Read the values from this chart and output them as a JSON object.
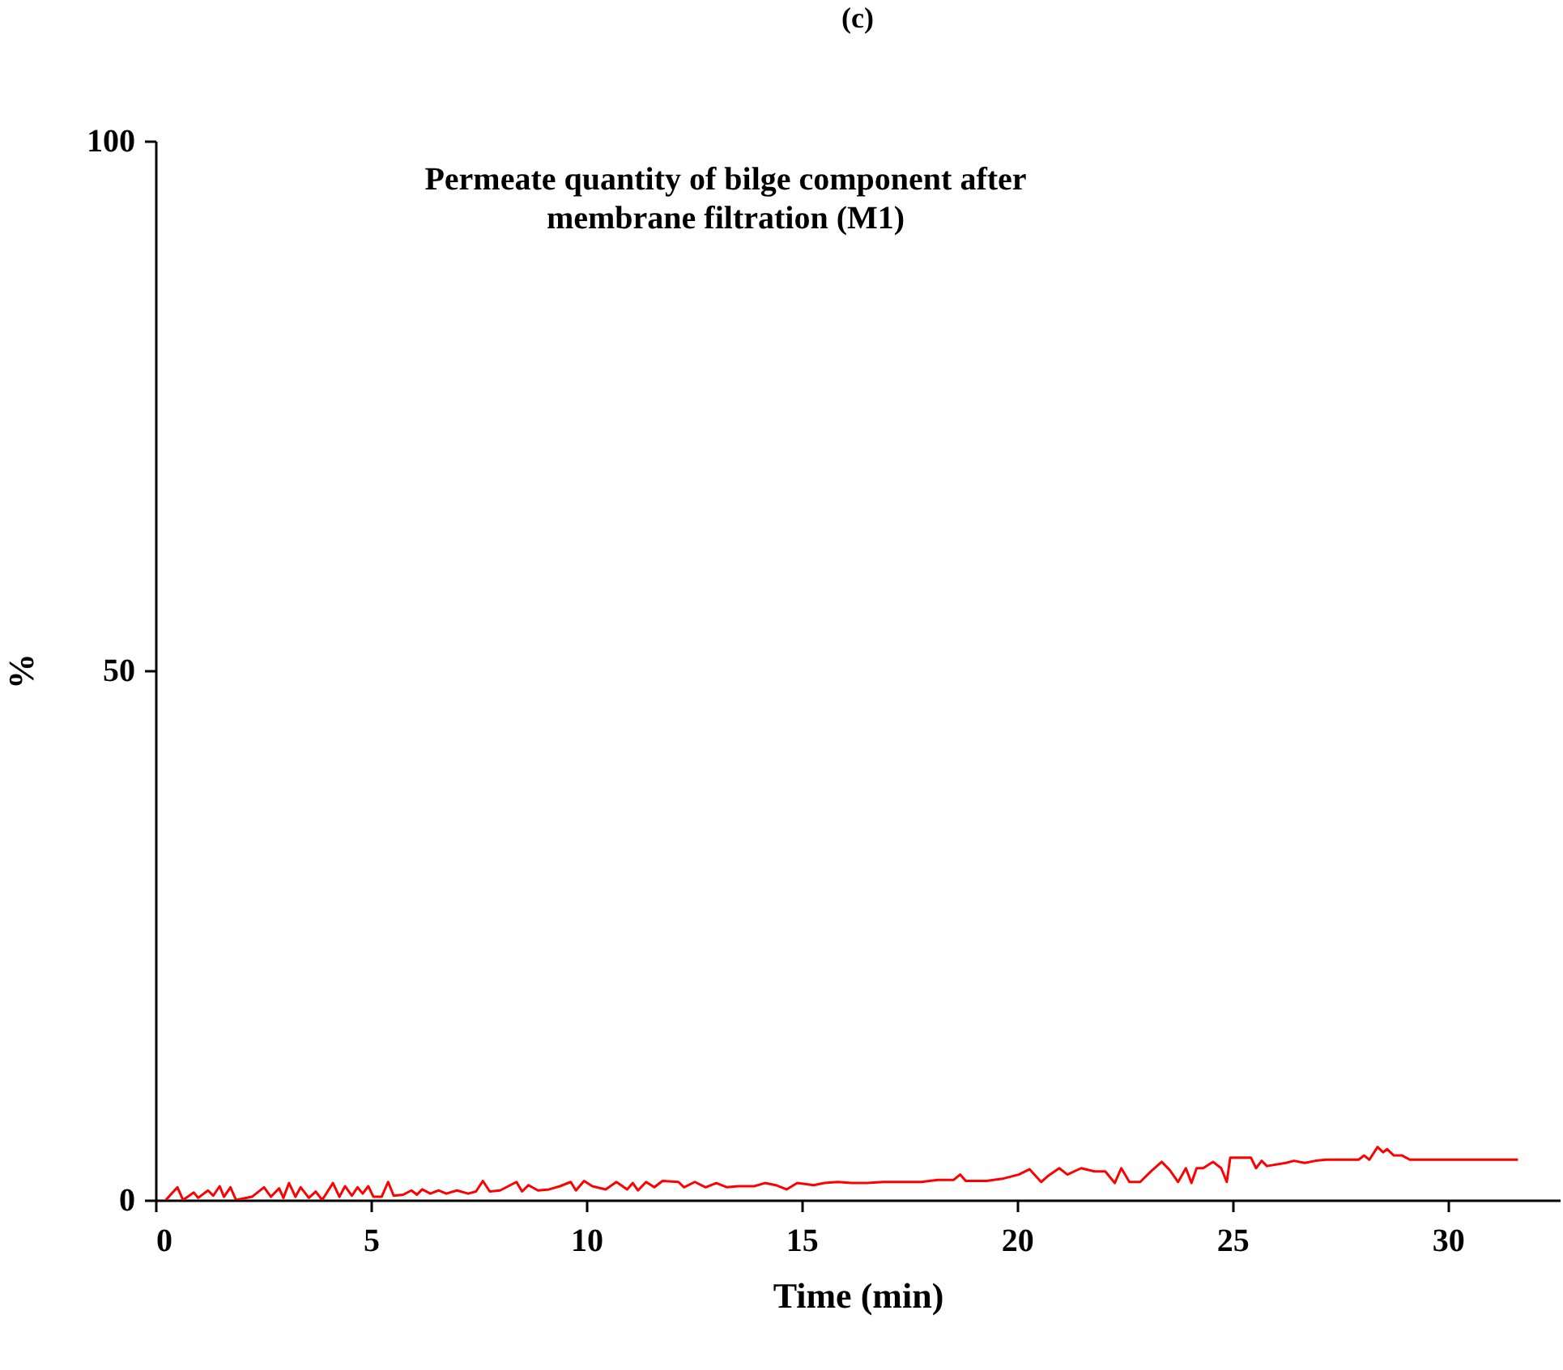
{
  "chart_data": {
    "type": "line",
    "title": "(c)",
    "subtitle": "Permeate quantity of bilge component after\nmembrane filtration (M1)",
    "xlabel": "Time (min)",
    "ylabel": "%",
    "xlim": [
      0,
      32.6
    ],
    "xticks": [
      0,
      5,
      10,
      15,
      20,
      25,
      30
    ],
    "ylim": [
      0,
      100
    ],
    "yticks": [
      0,
      50,
      100
    ],
    "grid": false,
    "legend": false,
    "marker": "none",
    "line_style": "solid",
    "x": [
      0.24,
      0.51,
      0.64,
      0.89,
      0.99,
      1.22,
      1.34,
      1.49,
      1.59,
      1.74,
      1.87,
      2.24,
      2.52,
      2.68,
      2.87,
      2.97,
      3.1,
      3.25,
      3.37,
      3.56,
      3.72,
      3.87,
      4.12,
      4.27,
      4.4,
      4.56,
      4.69,
      4.81,
      4.94,
      5.06,
      5.25,
      5.4,
      5.53,
      5.75,
      5.94,
      6.07,
      6.19,
      6.38,
      6.57,
      6.75,
      7.0,
      7.26,
      7.44,
      7.6,
      7.76,
      8.0,
      8.38,
      8.51,
      8.66,
      8.88,
      9.14,
      9.39,
      9.64,
      9.76,
      9.95,
      10.14,
      10.45,
      10.7,
      10.95,
      11.08,
      11.2,
      11.39,
      11.58,
      11.77,
      12.14,
      12.27,
      12.52,
      12.77,
      13.02,
      13.27,
      13.52,
      13.9,
      14.15,
      14.4,
      14.65,
      14.9,
      15.28,
      15.53,
      15.84,
      16.15,
      16.53,
      16.9,
      17.78,
      18.16,
      18.53,
      18.68,
      18.81,
      19.29,
      19.66,
      20.04,
      20.29,
      20.56,
      20.73,
      20.98,
      21.17,
      21.49,
      21.8,
      22.05,
      22.27,
      22.42,
      22.61,
      22.86,
      23.11,
      23.36,
      23.55,
      23.74,
      23.92,
      24.05,
      24.17,
      24.32,
      24.55,
      24.74,
      24.87,
      24.95,
      25.43,
      25.55,
      25.68,
      25.8,
      26.24,
      26.43,
      26.68,
      26.93,
      27.18,
      27.93,
      28.06,
      28.18,
      28.37,
      28.5,
      28.59,
      28.75,
      28.94,
      29.12,
      29.94,
      31.63
    ],
    "series": [
      {
        "color": "#ff0000",
        "values": [
          0,
          1.2,
          0,
          0.7,
          0.2,
          0.9,
          0.4,
          1.3,
          0.3,
          1.2,
          0,
          0.3,
          1.2,
          0.3,
          1.1,
          0.2,
          1.6,
          0.3,
          1.2,
          0.2,
          0.8,
          0,
          1.6,
          0.3,
          1.3,
          0.4,
          1.2,
          0.6,
          1.3,
          0.3,
          0.3,
          1.7,
          0.4,
          0.5,
          0.9,
          0.5,
          1.0,
          0.6,
          0.9,
          0.6,
          0.9,
          0.6,
          0.8,
          1.8,
          0.8,
          0.9,
          1.7,
          0.8,
          1.4,
          0.9,
          1.0,
          1.3,
          1.7,
          0.9,
          1.8,
          1.3,
          1.0,
          1.7,
          1.0,
          1.6,
          0.9,
          1.7,
          1.2,
          1.8,
          1.7,
          1.2,
          1.7,
          1.2,
          1.6,
          1.2,
          1.3,
          1.3,
          1.6,
          1.4,
          1.0,
          1.6,
          1.4,
          1.6,
          1.7,
          1.6,
          1.6,
          1.7,
          1.7,
          1.9,
          1.9,
          2.4,
          1.8,
          1.8,
          2.0,
          2.4,
          2.9,
          1.7,
          2.3,
          3.0,
          2.4,
          3.0,
          2.7,
          2.7,
          1.6,
          3.0,
          1.7,
          1.7,
          2.7,
          3.6,
          2.8,
          1.7,
          3.0,
          1.6,
          3.0,
          3.0,
          3.6,
          3.0,
          1.7,
          4.0,
          4.0,
          3.0,
          3.7,
          3.2,
          3.5,
          3.7,
          3.5,
          3.7,
          3.8,
          3.8,
          4.2,
          3.8,
          5.0,
          4.5,
          4.8,
          4.2,
          4.2,
          3.8,
          3.8,
          3.8
        ]
      }
    ]
  }
}
